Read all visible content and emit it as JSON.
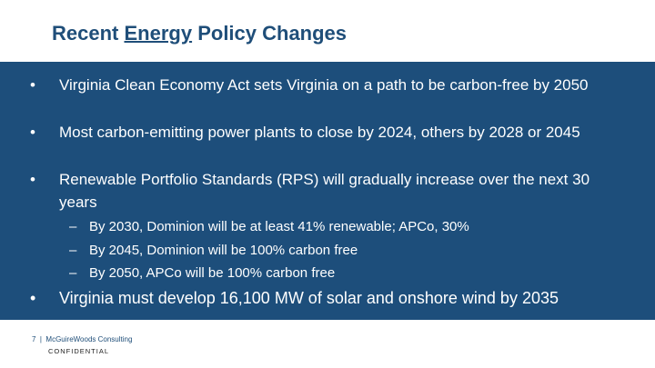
{
  "header": {
    "title": {
      "before": "Recent",
      "underlined": "Energy",
      "after": "Policy Changes"
    }
  },
  "bullets": [
    {
      "text": "Virginia Clean Economy Act sets Virginia on a path to be carbon-free by 2050"
    },
    {
      "text": "Most carbon-emitting power plants to close by 2024, others by 2028 or 2045"
    },
    {
      "text": "Renewable Portfolio Standards (RPS) will gradually increase over the next 30 years",
      "sub_bullets": [
        "By 2030, Dominion will be at least 41% renewable; APCo, 30%",
        "By 2045, Dominion will be 100% carbon free",
        "By 2050, APCo will be 100% carbon free"
      ]
    },
    {
      "text": "Virginia must develop 16,100 MW of solar and onshore wind by 2035"
    }
  ],
  "footer": {
    "page_number": "7",
    "company": "McGuireWoods Consulting",
    "confidential": "CONFIDENTIAL"
  }
}
